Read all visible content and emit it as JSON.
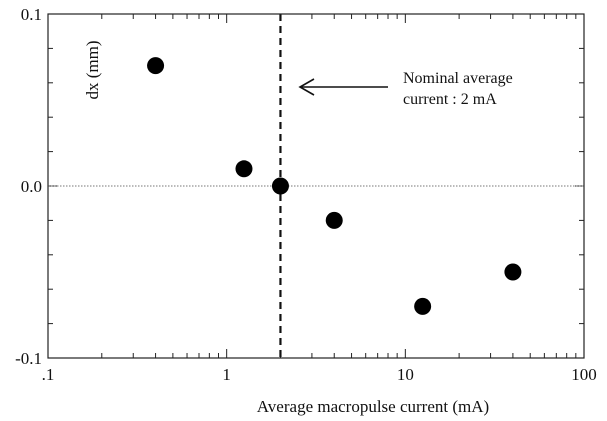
{
  "chart_data": {
    "type": "scatter",
    "xscale": "log",
    "xlim": [
      0.1,
      100
    ],
    "ylim": [
      -0.1,
      0.1
    ],
    "xlabel": "Average macropulse current (mA)",
    "ylabel": "dx (mm)",
    "x_ticks": [
      {
        "value": 0.1,
        "label": ".1"
      },
      {
        "value": 1,
        "label": "1"
      },
      {
        "value": 10,
        "label": "10"
      },
      {
        "value": 100,
        "label": "100"
      }
    ],
    "y_ticks": [
      {
        "value": 0.1,
        "label": "0.1"
      },
      {
        "value": 0.0,
        "label": "0.0"
      },
      {
        "value": -0.1,
        "label": "-0.1"
      }
    ],
    "points": [
      {
        "x": 0.4,
        "y": 0.07
      },
      {
        "x": 1.25,
        "y": 0.01
      },
      {
        "x": 2.0,
        "y": 0.0
      },
      {
        "x": 4.0,
        "y": -0.02
      },
      {
        "x": 12.5,
        "y": -0.07
      },
      {
        "x": 40,
        "y": -0.05
      }
    ],
    "reference_line": {
      "x": 2.0
    },
    "zero_line": {
      "y": 0.0
    },
    "annotation": {
      "line1": "Nominal average",
      "line2": "current : 2 mA"
    },
    "grid": false
  }
}
